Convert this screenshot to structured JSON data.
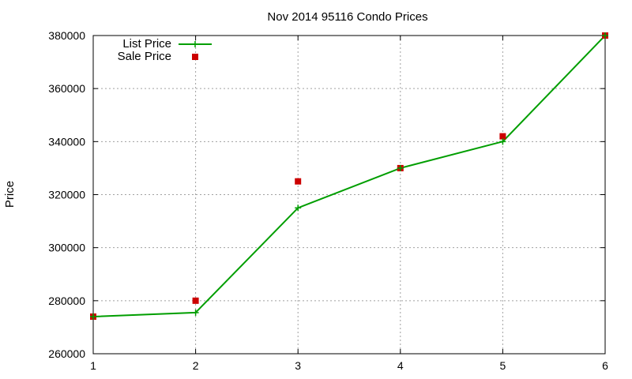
{
  "chart_data": {
    "type": "line",
    "title": "Nov 2014 95116 Condo Prices",
    "xlabel": "",
    "ylabel": "Price",
    "x": [
      1,
      2,
      3,
      4,
      5,
      6
    ],
    "xlim": [
      1,
      6
    ],
    "ylim": [
      260000,
      380000
    ],
    "xticks": [
      1,
      2,
      3,
      4,
      5,
      6
    ],
    "yticks": [
      260000,
      280000,
      300000,
      320000,
      340000,
      360000,
      380000
    ],
    "grid": true,
    "legend_position": "top-left",
    "series": [
      {
        "name": "List Price",
        "style": "line-with-plus-markers",
        "color": "#009e00",
        "values": [
          274000,
          275500,
          315000,
          330000,
          340000,
          380000
        ]
      },
      {
        "name": "Sale Price",
        "style": "square-markers",
        "color": "#cc0000",
        "values": [
          274000,
          280000,
          325000,
          330000,
          342000,
          380000
        ]
      }
    ]
  }
}
